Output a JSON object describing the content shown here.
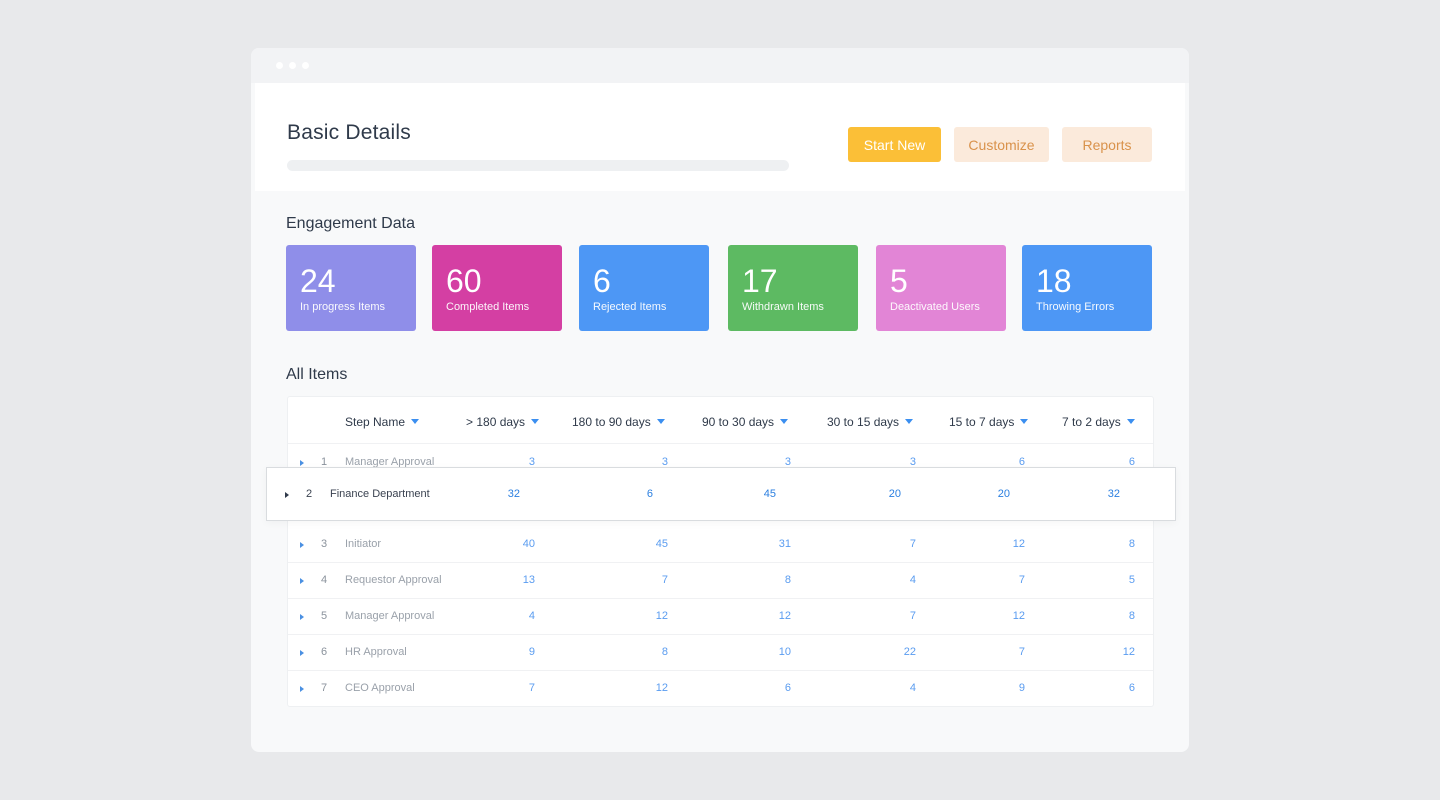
{
  "header": {
    "title": "Basic Details",
    "buttons": {
      "start_new": "Start New",
      "customize": "Customize",
      "reports": "Reports"
    },
    "colors": {
      "start_new": "#fbbf37",
      "secondary_bg": "#fbeadb",
      "secondary_text": "#d9924b"
    }
  },
  "engagement": {
    "title": "Engagement Data",
    "cards": [
      {
        "value": "24",
        "label": "In progress Items",
        "color": "#8f8ee9"
      },
      {
        "value": "60",
        "label": "Completed Items",
        "color": "#d43fa3"
      },
      {
        "value": "6",
        "label": "Rejected Items",
        "color": "#4d97f5"
      },
      {
        "value": "17",
        "label": "Withdrawn Items",
        "color": "#5dba62"
      },
      {
        "value": "5",
        "label": "Deactivated Users",
        "color": "#e285d6"
      },
      {
        "value": "18",
        "label": "Throwing Errors",
        "color": "#4d97f5"
      }
    ]
  },
  "items": {
    "title": "All Items",
    "columns": [
      "Step Name",
      "> 180 days",
      "180 to 90 days",
      "90 to 30 days",
      "30 to 15 days",
      "15 to 7 days",
      "7 to 2 days"
    ],
    "rows": [
      {
        "index": "1",
        "name": "Manager Approval",
        "values": [
          "3",
          "3",
          "3",
          "3",
          "6",
          "6"
        ]
      },
      {
        "index": "2",
        "name": "Finance Department",
        "values": [
          "32",
          "6",
          "45",
          "20",
          "20",
          "32"
        ]
      },
      {
        "index": "3",
        "name": "Initiator",
        "values": [
          "40",
          "45",
          "31",
          "7",
          "12",
          "8"
        ]
      },
      {
        "index": "4",
        "name": "Requestor Approval",
        "values": [
          "13",
          "7",
          "8",
          "4",
          "7",
          "5"
        ]
      },
      {
        "index": "5",
        "name": "Manager Approval",
        "values": [
          "4",
          "12",
          "12",
          "7",
          "12",
          "8"
        ]
      },
      {
        "index": "6",
        "name": "HR Approval",
        "values": [
          "9",
          "8",
          "10",
          "22",
          "7",
          "12"
        ]
      },
      {
        "index": "7",
        "name": "CEO Approval",
        "values": [
          "7",
          "12",
          "6",
          "4",
          "9",
          "6"
        ]
      }
    ]
  }
}
